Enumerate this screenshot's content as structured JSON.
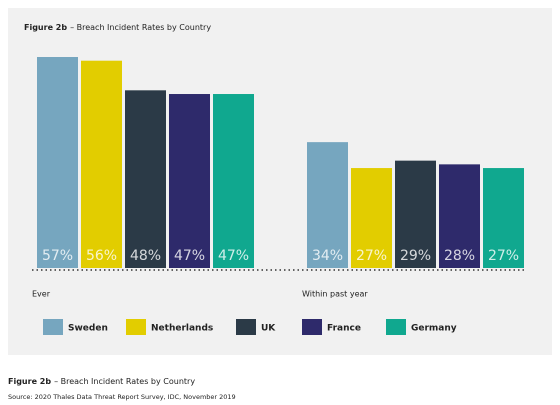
{
  "chart_data": {
    "type": "bar",
    "figure_label": "Figure 2b",
    "title": "– Breach Incident Rates by Country",
    "categories": [
      "Ever",
      "Within past year"
    ],
    "series": [
      {
        "name": "Sweden",
        "color": "#76a6bf",
        "values": [
          57,
          34
        ],
        "value_labels": [
          "57%",
          "34%"
        ]
      },
      {
        "name": "Netherlands",
        "color": "#e2cd00",
        "values": [
          56,
          27
        ],
        "value_labels": [
          "56%",
          "27%"
        ]
      },
      {
        "name": "UK",
        "color": "#2b3a47",
        "values": [
          48,
          29
        ],
        "value_labels": [
          "48%",
          "29%"
        ]
      },
      {
        "name": "France",
        "color": "#2e2a6b",
        "values": [
          47,
          28
        ],
        "value_labels": [
          "47%",
          "28%"
        ]
      },
      {
        "name": "Germany",
        "color": "#10a88f",
        "values": [
          47,
          27
        ],
        "value_labels": [
          "47%",
          "27%"
        ]
      }
    ],
    "source": "Source: 2020 Thales Data Threat Report Survey, IDC, November 2019"
  }
}
